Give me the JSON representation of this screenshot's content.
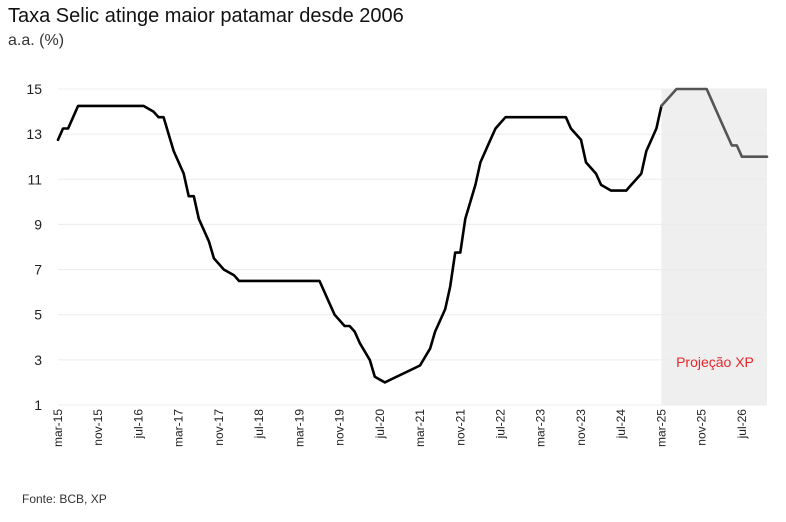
{
  "title": "Taxa Selic atinge maior patamar desde 2006",
  "subtitle": "a.a. (%)",
  "source": "Fonte: BCB, XP",
  "projection_label": "Projeção XP",
  "colors": {
    "history_line": "#000000",
    "projection_line": "#555555",
    "projection_shade": "#efefef",
    "projection_label": "#e8262b",
    "grid": "#ececec"
  },
  "chart_data": {
    "type": "line",
    "title": "Taxa Selic atinge maior patamar desde 2006",
    "ylabel": "a.a. (%)",
    "xlabel": "",
    "ylim": [
      1,
      15
    ],
    "yticks": [
      1,
      3,
      5,
      7,
      9,
      11,
      13,
      15
    ],
    "xlim": [
      "2015-03",
      "2026-12"
    ],
    "xticks": [
      "mar-15",
      "nov-15",
      "jul-16",
      "mar-17",
      "nov-17",
      "jul-18",
      "mar-19",
      "nov-19",
      "jul-20",
      "mar-21",
      "nov-21",
      "jul-22",
      "mar-23",
      "nov-23",
      "jul-24",
      "mar-25",
      "nov-25",
      "jul-26"
    ],
    "grid": true,
    "projection_start": "2025-03",
    "series": [
      {
        "role": "historical",
        "x": [
          "2015-03",
          "2015-04",
          "2015-05",
          "2015-06",
          "2015-07",
          "2016-07",
          "2016-08",
          "2016-10",
          "2016-11",
          "2016-12",
          "2017-01",
          "2017-02",
          "2017-04",
          "2017-05",
          "2017-06",
          "2017-07",
          "2017-09",
          "2017-10",
          "2017-12",
          "2018-02",
          "2018-03",
          "2019-07",
          "2019-09",
          "2019-10",
          "2019-12",
          "2020-01",
          "2020-02",
          "2020-03",
          "2020-05",
          "2020-06",
          "2020-08",
          "2021-03",
          "2021-05",
          "2021-06",
          "2021-08",
          "2021-09",
          "2021-10",
          "2021-11",
          "2021-12",
          "2022-02",
          "2022-03",
          "2022-05",
          "2022-06",
          "2022-08",
          "2023-08",
          "2023-09",
          "2023-11",
          "2023-12",
          "2024-02",
          "2024-03",
          "2024-05",
          "2024-06",
          "2024-08",
          "2024-09",
          "2024-11",
          "2024-12",
          "2025-02",
          "2025-03"
        ],
        "y": [
          12.75,
          13.25,
          13.25,
          13.75,
          14.25,
          14.25,
          14.25,
          14.0,
          13.75,
          13.75,
          13.0,
          12.25,
          11.25,
          10.25,
          10.25,
          9.25,
          8.25,
          7.5,
          7.0,
          6.75,
          6.5,
          6.5,
          5.5,
          5.0,
          4.5,
          4.5,
          4.25,
          3.75,
          3.0,
          2.25,
          2.0,
          2.75,
          3.5,
          4.25,
          5.25,
          6.25,
          7.75,
          7.75,
          9.25,
          10.75,
          11.75,
          12.75,
          13.25,
          13.75,
          13.75,
          13.25,
          12.75,
          11.75,
          11.25,
          10.75,
          10.5,
          10.5,
          10.5,
          10.75,
          11.25,
          12.25,
          13.25,
          14.25
        ]
      },
      {
        "role": "projection",
        "x": [
          "2025-03",
          "2025-05",
          "2025-06",
          "2025-07",
          "2025-12",
          "2026-01",
          "2026-02",
          "2026-03",
          "2026-05",
          "2026-06",
          "2026-07",
          "2026-12"
        ],
        "y": [
          14.25,
          14.75,
          15.0,
          15.0,
          15.0,
          14.5,
          14.0,
          13.5,
          12.5,
          12.5,
          12.0,
          12.0
        ]
      }
    ]
  }
}
